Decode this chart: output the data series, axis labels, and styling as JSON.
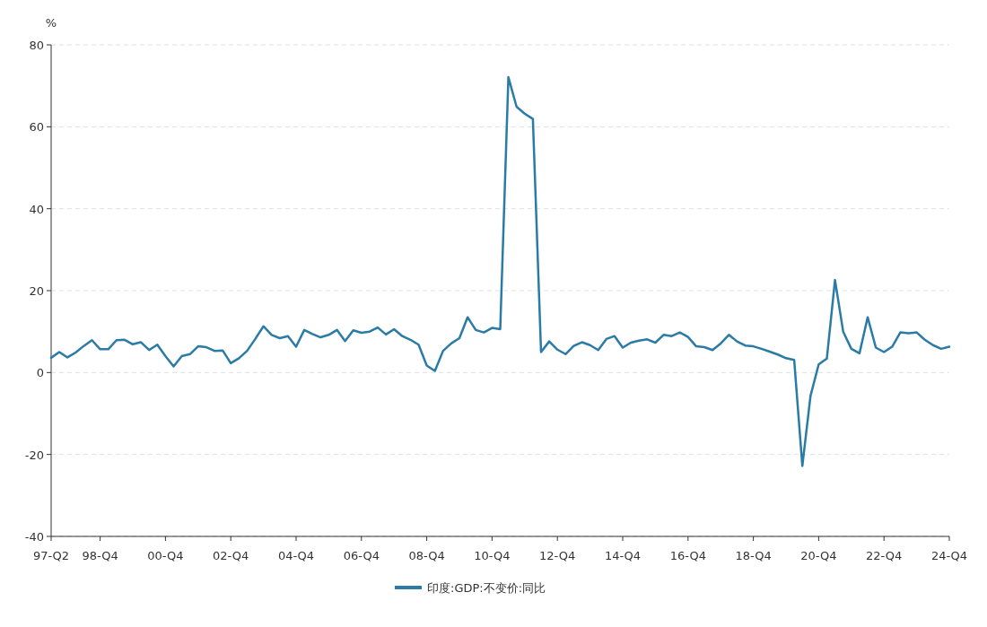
{
  "chart_data": {
    "type": "line",
    "ylabel": "%",
    "categories": [
      "97-Q2",
      null,
      null,
      null,
      null,
      null,
      "98-Q4",
      null,
      null,
      null,
      null,
      null,
      null,
      null,
      "00-Q4",
      null,
      null,
      null,
      null,
      null,
      null,
      null,
      "02-Q4",
      null,
      null,
      null,
      null,
      null,
      null,
      null,
      "04-Q4",
      null,
      null,
      null,
      null,
      null,
      null,
      null,
      "06-Q4",
      null,
      null,
      null,
      null,
      null,
      null,
      null,
      "08-Q4",
      null,
      null,
      null,
      null,
      null,
      null,
      null,
      "10-Q4",
      null,
      null,
      null,
      null,
      null,
      null,
      null,
      "12-Q4",
      null,
      null,
      null,
      null,
      null,
      null,
      null,
      "14-Q4",
      null,
      null,
      null,
      null,
      null,
      null,
      null,
      "16-Q4",
      null,
      null,
      null,
      null,
      null,
      null,
      null,
      "18-Q4",
      null,
      null,
      null,
      null,
      null,
      null,
      null,
      "20-Q4",
      null,
      null,
      null,
      null,
      null,
      null,
      null,
      "22-Q4",
      null,
      null,
      null,
      null,
      null,
      null,
      null,
      "24-Q4"
    ],
    "series": [
      {
        "name": "印度:GDP:不变价:同比",
        "color": "#2a7ba5",
        "values": [
          3.6,
          5.0,
          3.7,
          4.9,
          6.5,
          7.9,
          5.7,
          5.7,
          7.9,
          8.0,
          6.9,
          7.4,
          5.5,
          6.8,
          4.0,
          1.5,
          4.0,
          4.5,
          6.4,
          6.2,
          5.3,
          5.4,
          2.3,
          3.5,
          5.3,
          8.2,
          11.3,
          9.2,
          8.4,
          8.9,
          6.3,
          10.4,
          9.4,
          8.6,
          9.2,
          10.4,
          7.7,
          10.3,
          9.7,
          10.0,
          11.0,
          9.3,
          10.6,
          8.9,
          8.0,
          6.8,
          1.7,
          0.4,
          5.3,
          7.1,
          8.4,
          13.5,
          10.4,
          9.8,
          10.9,
          10.6,
          72.1,
          64.9,
          63.2,
          61.9,
          5.0,
          7.6,
          5.6,
          4.5,
          6.5,
          7.4,
          6.7,
          5.5,
          8.2,
          8.9,
          6.1,
          7.3,
          7.8,
          8.1,
          7.3,
          9.2,
          8.9,
          9.8,
          8.7,
          6.4,
          6.2,
          5.5,
          7.1,
          9.2,
          7.6,
          6.6,
          6.4,
          5.8,
          5.1,
          4.4,
          3.5,
          3.1,
          -22.8,
          -5.7,
          2.0,
          3.4,
          22.6,
          10.0,
          5.8,
          4.7,
          13.5,
          6.1,
          5.0,
          6.3,
          9.8,
          9.6,
          9.8,
          8.0,
          6.7,
          5.8,
          6.3
        ]
      }
    ],
    "ylim": [
      -40,
      80
    ],
    "yticks": [
      -40,
      -20,
      0,
      20,
      40,
      60,
      80
    ],
    "grid": "y",
    "legend": "bottom",
    "marker": "none",
    "line_style": "solid"
  }
}
